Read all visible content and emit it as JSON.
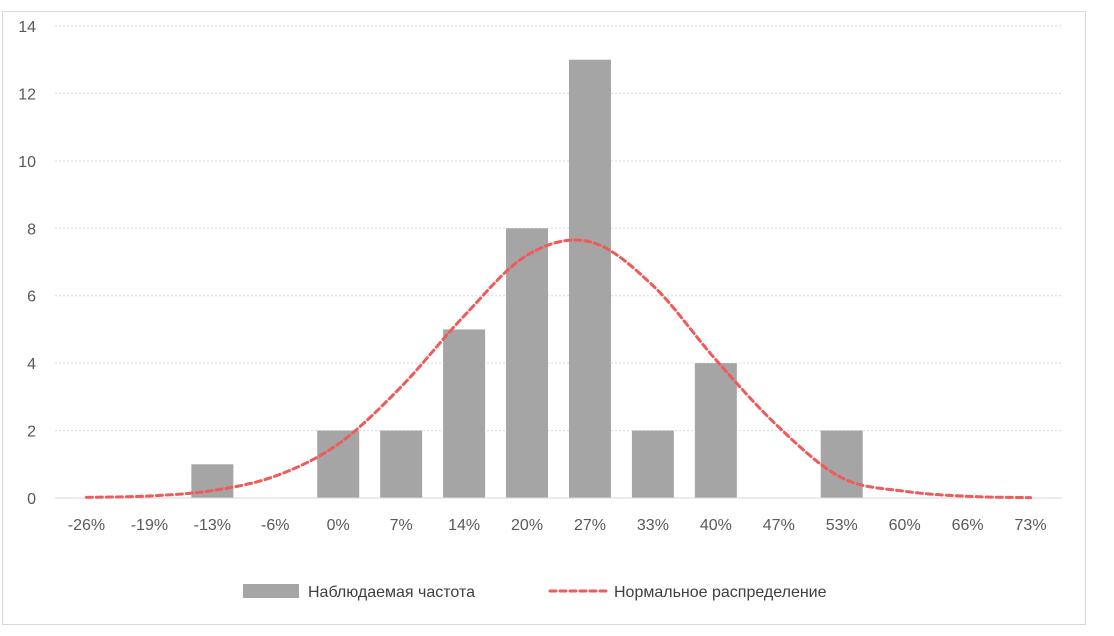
{
  "chart_data": {
    "type": "bar",
    "title": "",
    "xlabel": "",
    "ylabel": "",
    "categories": [
      "-26%",
      "-19%",
      "-13%",
      "-6%",
      "0%",
      "7%",
      "14%",
      "20%",
      "27%",
      "33%",
      "40%",
      "47%",
      "53%",
      "60%",
      "66%",
      "73%"
    ],
    "ylim": [
      0,
      14
    ],
    "yticks": [
      0,
      2,
      4,
      6,
      8,
      10,
      12,
      14
    ],
    "grid": true,
    "legend_position": "bottom",
    "series": [
      {
        "name": "Наблюдаемая частота",
        "type": "bar",
        "color": "#a5a5a5",
        "values": [
          0,
          0,
          1,
          0,
          2,
          2,
          5,
          8,
          13,
          2,
          4,
          0,
          2,
          0,
          0,
          0
        ]
      },
      {
        "name": "Нормальное распределение",
        "type": "line",
        "style": "dashed",
        "color": "#f05a5a",
        "values": [
          0.02,
          0.06,
          0.22,
          0.65,
          1.6,
          3.3,
          5.4,
          7.2,
          7.6,
          6.3,
          4.1,
          2.1,
          0.6,
          0.2,
          0.05,
          0.01
        ]
      }
    ]
  }
}
